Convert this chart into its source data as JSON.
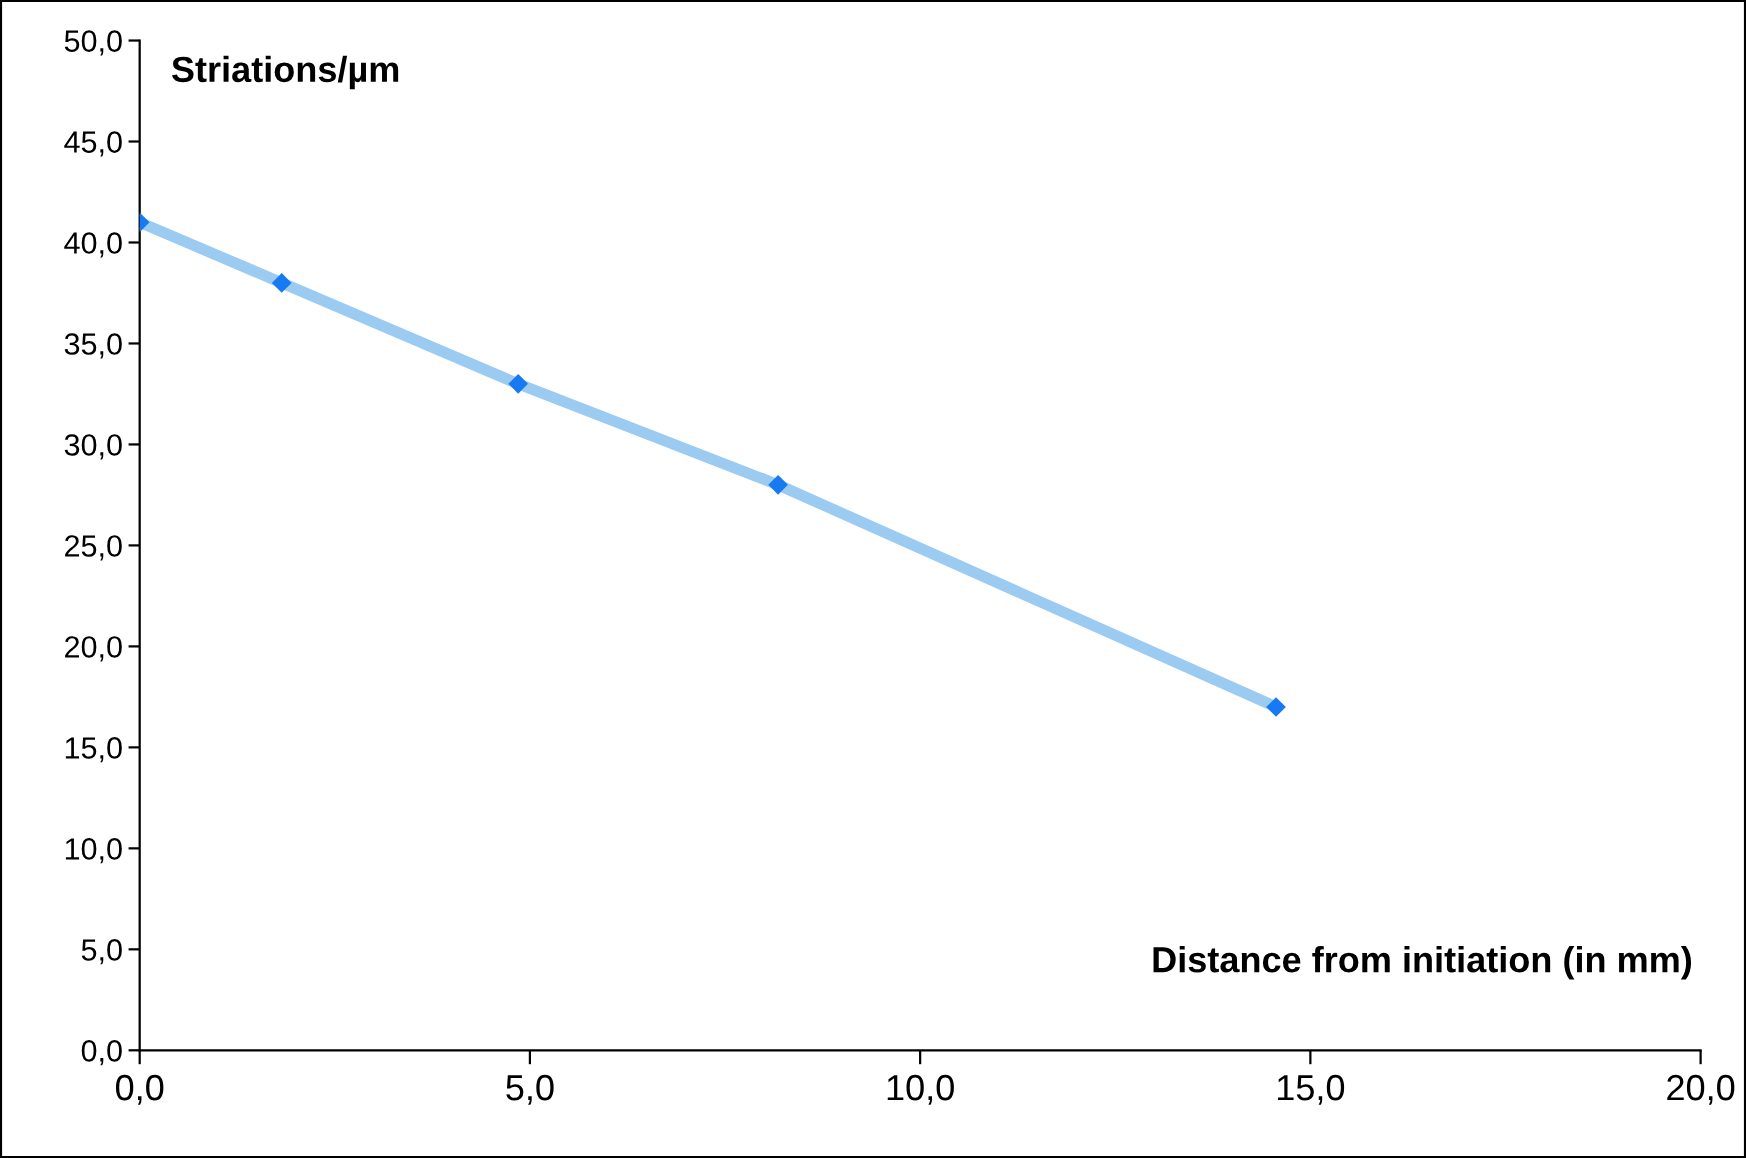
{
  "chart_data": {
    "type": "line",
    "xlabel": "Distance from initiation (in mm)",
    "ylabel": "Striations/µm",
    "x": [
      0.0,
      1.82,
      4.85,
      8.18,
      14.56
    ],
    "series": [
      {
        "color": "#9ccbf2",
        "values": [
          41.0,
          38.0,
          33.0,
          28.0,
          17.0
        ]
      }
    ],
    "marker": "diamond",
    "line_style": "solid",
    "grid": false,
    "legend": false,
    "xlim": [
      0,
      20
    ],
    "ylim": [
      0,
      50
    ],
    "xticks": [
      {
        "value": 0,
        "label": "0,0"
      },
      {
        "value": 5,
        "label": "5,0"
      },
      {
        "value": 10,
        "label": "10,0"
      },
      {
        "value": 15,
        "label": "15,0"
      },
      {
        "value": 20,
        "label": "20,0"
      }
    ],
    "yticks": [
      {
        "value": 0,
        "label": "0,0"
      },
      {
        "value": 5,
        "label": "5,0"
      },
      {
        "value": 10,
        "label": "10,0"
      },
      {
        "value": 15,
        "label": "15,0"
      },
      {
        "value": 20,
        "label": "20,0"
      },
      {
        "value": 25,
        "label": "25,0"
      },
      {
        "value": 30,
        "label": "30,0"
      },
      {
        "value": 35,
        "label": "35,0"
      },
      {
        "value": 40,
        "label": "40,0"
      },
      {
        "value": 45,
        "label": "45,0"
      },
      {
        "value": 50,
        "label": "50,0"
      }
    ]
  }
}
